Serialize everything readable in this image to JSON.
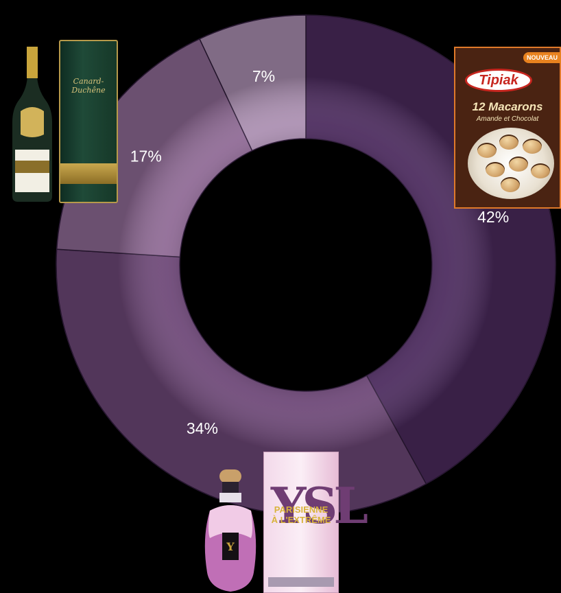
{
  "chart_data": {
    "type": "pie",
    "style": "donut",
    "slices": [
      {
        "label": "42%",
        "value": 42,
        "color": "#4c2b5e"
      },
      {
        "label": "34%",
        "value": 34,
        "color": "#6e4878"
      },
      {
        "label": "17%",
        "value": 17,
        "color": "#8f6a95"
      },
      {
        "label": "7%",
        "value": 7,
        "color": "#ab8fb1"
      }
    ],
    "title": "",
    "legend": "none",
    "start_angle_deg": 0,
    "direction": "clockwise"
  },
  "products": {
    "champagne": {
      "brand": "Canard-Duchêne",
      "icon": "champagne-bottle-and-box"
    },
    "macarons": {
      "brand": "Tipiak",
      "line1": "12 Macarons",
      "line2": "Amande et Chocolat",
      "badge": "NOUVEAU",
      "icon": "macarons-box"
    },
    "perfume": {
      "name": "PARISIENNE",
      "sub": "À L'EXTRÊME",
      "icon": "ysl-perfume-bottle-and-box"
    }
  }
}
